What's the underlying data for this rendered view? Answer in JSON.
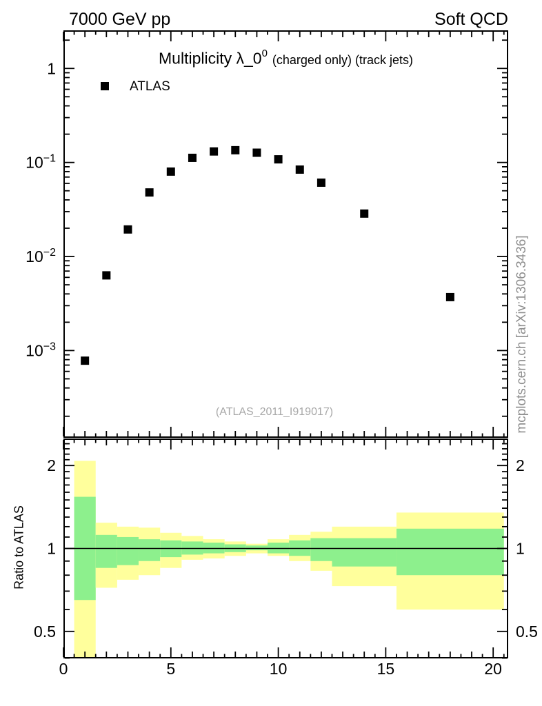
{
  "header": {
    "left_label": "7000 GeV pp",
    "right_label": "Soft QCD"
  },
  "main_panel": {
    "title_main": "Multiplicity λ_0",
    "title_sup": "0",
    "title_suffix": "(charged only) (track jets)",
    "legend": {
      "label": "ATLAS",
      "marker": "filled-square",
      "marker_color": "#000000"
    },
    "watermark": "(ATLAS_2011_I919017)"
  },
  "side_note": "mcplots.cern.ch [arXiv:1306.3436]",
  "ratio_panel": {
    "ylabel": "Ratio to ATLAS"
  },
  "colors": {
    "band_outer_yellow": "#ffff9c",
    "band_inner_green": "#8df08d",
    "marker_black": "#000000",
    "watermark_gray": "#a8a8a8",
    "side_note_gray": "#8f8f8f"
  },
  "chart_data": [
    {
      "type": "scatter",
      "title": "Multiplicity λ_0^0 (charged only) (track jets)",
      "xlabel": "",
      "ylabel": "",
      "yscale": "log",
      "xlim": [
        0,
        20.7
      ],
      "ylim": [
        0.00012,
        2.5
      ],
      "grid": false,
      "legend_position": "top-left",
      "xticks_major": [
        0,
        5,
        10,
        15,
        20
      ],
      "xtick_labels": [
        "0",
        "5",
        "10",
        "15",
        "20"
      ],
      "xtick_minor_step": 0.5,
      "ytick_decades": [
        0,
        -1,
        -2,
        -3
      ],
      "ytick_labels": [
        "1",
        "10^-1",
        "10^-2",
        "10^-3"
      ],
      "series": [
        {
          "name": "ATLAS",
          "marker": "filled-square",
          "color": "#000000",
          "x": [
            1,
            2,
            3,
            4,
            5,
            6,
            7,
            8,
            9,
            10,
            11,
            12,
            14,
            18
          ],
          "y": [
            0.00078,
            0.0063,
            0.0194,
            0.048,
            0.08,
            0.112,
            0.131,
            0.135,
            0.127,
            0.108,
            0.084,
            0.061,
            0.0286,
            0.0037
          ]
        }
      ]
    },
    {
      "type": "ratio-bands",
      "ylabel": "Ratio to ATLAS",
      "yscale": "log",
      "ylim": [
        0.4,
        2.5
      ],
      "reference_line": 1.0,
      "ytick_labels": [
        {
          "value": 2,
          "label": "2"
        },
        {
          "value": 1,
          "label": "1"
        },
        {
          "value": 0.5,
          "label": "0.5"
        }
      ],
      "band_colors": {
        "outer": "#ffff9c",
        "inner": "#8df08d"
      },
      "bands": [
        {
          "x": [
            0.5,
            1.5
          ],
          "outer": [
            0.39,
            2.08
          ],
          "inner": [
            0.65,
            1.54
          ]
        },
        {
          "x": [
            1.5,
            2.5
          ],
          "outer": [
            0.72,
            1.24
          ],
          "inner": [
            0.85,
            1.12
          ]
        },
        {
          "x": [
            2.5,
            3.5
          ],
          "outer": [
            0.77,
            1.2
          ],
          "inner": [
            0.87,
            1.1
          ]
        },
        {
          "x": [
            3.5,
            4.5
          ],
          "outer": [
            0.8,
            1.19
          ],
          "inner": [
            0.9,
            1.08
          ]
        },
        {
          "x": [
            4.5,
            5.5
          ],
          "outer": [
            0.85,
            1.14
          ],
          "inner": [
            0.93,
            1.07
          ]
        },
        {
          "x": [
            5.5,
            6.5
          ],
          "outer": [
            0.91,
            1.11
          ],
          "inner": [
            0.95,
            1.06
          ]
        },
        {
          "x": [
            6.5,
            7.5
          ],
          "outer": [
            0.92,
            1.08
          ],
          "inner": [
            0.96,
            1.05
          ]
        },
        {
          "x": [
            7.5,
            8.5
          ],
          "outer": [
            0.94,
            1.06
          ],
          "inner": [
            0.97,
            1.035
          ]
        },
        {
          "x": [
            8.5,
            9.5
          ],
          "outer": [
            0.96,
            1.04
          ],
          "inner": [
            0.985,
            1.025
          ]
        },
        {
          "x": [
            9.5,
            10.5
          ],
          "outer": [
            0.94,
            1.08
          ],
          "inner": [
            0.96,
            1.05
          ]
        },
        {
          "x": [
            10.5,
            11.5
          ],
          "outer": [
            0.9,
            1.12
          ],
          "inner": [
            0.94,
            1.07
          ]
        },
        {
          "x": [
            11.5,
            12.5
          ],
          "outer": [
            0.83,
            1.15
          ],
          "inner": [
            0.9,
            1.09
          ]
        },
        {
          "x": [
            12.5,
            15.5
          ],
          "outer": [
            0.73,
            1.2
          ],
          "inner": [
            0.86,
            1.09
          ]
        },
        {
          "x": [
            15.5,
            20.5
          ],
          "outer": [
            0.6,
            1.35
          ],
          "inner": [
            0.8,
            1.18
          ]
        }
      ]
    }
  ]
}
